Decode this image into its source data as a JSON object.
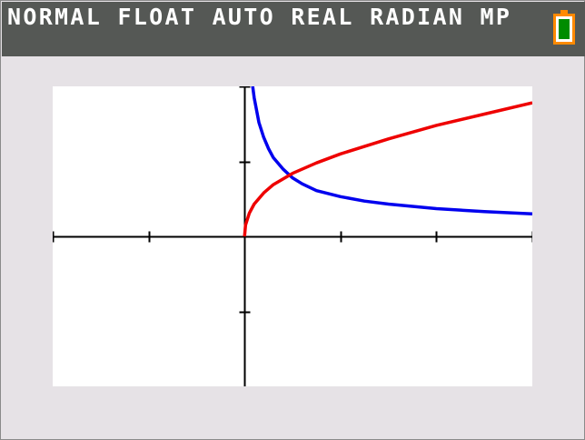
{
  "status_bar": {
    "mode_text": "NORMAL FLOAT AUTO REAL RADIAN MP",
    "battery_icon": "battery-icon",
    "battery_level": 1.0,
    "colors": {
      "background": "#555855",
      "text": "#ffffff",
      "battery_outline": "#ff8a00",
      "battery_fill": "#008c00"
    }
  },
  "chart_data": {
    "type": "line",
    "x_range": [
      -2,
      3
    ],
    "y_range": [
      -2,
      2
    ],
    "x_ticks": [
      -2,
      -1,
      1,
      2,
      3
    ],
    "y_ticks": [
      -1,
      1,
      2
    ],
    "grid": false,
    "series": [
      {
        "color": "#0000ee",
        "x": [
          0.05,
          0.075,
          0.1,
          0.15,
          0.2,
          0.25,
          0.3,
          0.4,
          0.5,
          0.6,
          0.75,
          1,
          1.25,
          1.5,
          2,
          2.5,
          3
        ],
        "y": [
          2.55,
          2.1,
          1.85,
          1.52,
          1.32,
          1.17,
          1.05,
          0.9,
          0.78,
          0.7,
          0.61,
          0.53,
          0.47,
          0.43,
          0.37,
          0.33,
          0.3
        ]
      },
      {
        "color": "#ee0000",
        "x": [
          0,
          0.01,
          0.05,
          0.1,
          0.2,
          0.3,
          0.5,
          0.75,
          1,
          1.5,
          2,
          2.5,
          3
        ],
        "y": [
          0,
          0.15,
          0.31,
          0.43,
          0.58,
          0.69,
          0.84,
          0.98,
          1.1,
          1.3,
          1.48,
          1.63,
          1.78
        ]
      }
    ]
  }
}
